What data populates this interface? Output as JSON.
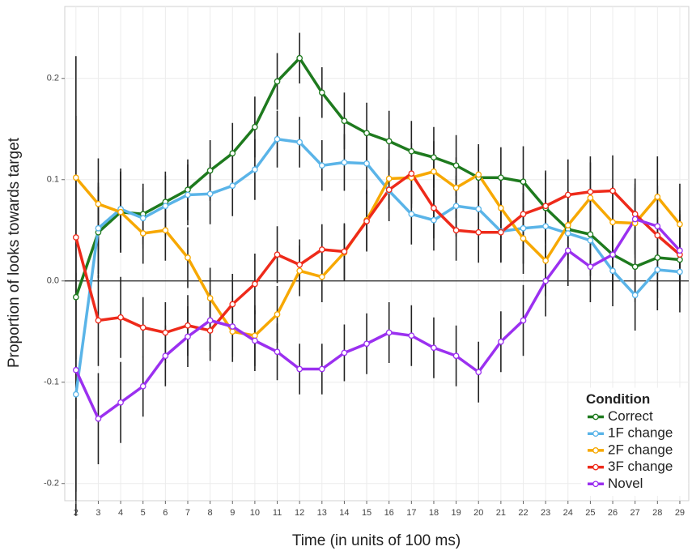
{
  "chart_data": {
    "type": "line",
    "x_label": "Time (in units of 100 ms)",
    "y_label": "Proportion of looks towards target",
    "x": [
      2,
      3,
      4,
      5,
      6,
      7,
      8,
      9,
      10,
      11,
      12,
      13,
      14,
      15,
      16,
      17,
      18,
      19,
      20,
      21,
      22,
      23,
      24,
      25,
      26,
      27,
      28,
      29
    ],
    "xlim": [
      1.5,
      29.4
    ],
    "xticks": [
      2,
      3,
      4,
      5,
      6,
      7,
      8,
      9,
      10,
      11,
      12,
      13,
      14,
      15,
      16,
      17,
      18,
      19,
      20,
      21,
      22,
      23,
      24,
      25,
      26,
      27,
      28,
      29
    ],
    "ylim": [
      -0.217,
      0.271
    ],
    "yticks": [
      -0.2,
      -0.1,
      {
        "value": 0,
        "label": "0.0"
      },
      0.1,
      0.2
    ],
    "hline": 0,
    "grid": true,
    "legend_title": "Condition",
    "legend_position": "bottom-right",
    "series": [
      {
        "name": "Correct",
        "color": "#1e7a1e",
        "values": [
          -0.016,
          0.048,
          0.068,
          0.066,
          0.078,
          0.09,
          0.109,
          0.126,
          0.152,
          0.197,
          0.22,
          0.186,
          0.158,
          0.146,
          0.138,
          0.128,
          0.122,
          0.114,
          0.102,
          0.102,
          0.098,
          0.072,
          0.051,
          0.046,
          0.026,
          0.014,
          0.023,
          0.021
        ],
        "errors": [
          0.12,
          0.045,
          0.04,
          0.03,
          0.03,
          0.03,
          0.03,
          0.03,
          0.03,
          0.028,
          0.025,
          0.025,
          0.028,
          0.03,
          0.03,
          0.03,
          0.03,
          0.03,
          0.03,
          0.03,
          0.035,
          0.035,
          0.035,
          0.035,
          0.035,
          0.035,
          0.04,
          0.04
        ]
      },
      {
        "name": "1F change",
        "color": "#5ab4e8",
        "values": [
          -0.112,
          0.052,
          0.071,
          0.062,
          0.074,
          0.085,
          0.086,
          0.094,
          0.11,
          0.14,
          0.137,
          0.114,
          0.117,
          0.116,
          0.089,
          0.066,
          0.06,
          0.074,
          0.071,
          0.049,
          0.052,
          0.054,
          0.047,
          0.04,
          0.01,
          -0.014,
          0.011,
          0.009
        ],
        "errors": [
          0.12,
          0.045,
          0.04,
          0.03,
          0.03,
          0.03,
          0.03,
          0.03,
          0.03,
          0.028,
          0.025,
          0.025,
          0.028,
          0.03,
          0.03,
          0.03,
          0.03,
          0.03,
          0.03,
          0.03,
          0.035,
          0.035,
          0.035,
          0.035,
          0.035,
          0.035,
          0.04,
          0.04
        ]
      },
      {
        "name": "2F change",
        "color": "#f7a800",
        "values": [
          0.102,
          0.076,
          0.068,
          0.047,
          0.05,
          0.023,
          -0.017,
          -0.05,
          -0.054,
          -0.033,
          0.01,
          0.004,
          0.028,
          0.06,
          0.101,
          0.102,
          0.108,
          0.092,
          0.105,
          0.072,
          0.042,
          0.02,
          0.055,
          0.082,
          0.058,
          0.057,
          0.083,
          0.056
        ],
        "errors": [
          0.12,
          0.045,
          0.04,
          0.03,
          0.03,
          0.03,
          0.03,
          0.03,
          0.03,
          0.028,
          0.025,
          0.025,
          0.028,
          0.03,
          0.03,
          0.03,
          0.03,
          0.03,
          0.03,
          0.03,
          0.035,
          0.035,
          0.035,
          0.035,
          0.035,
          0.035,
          0.04,
          0.04
        ]
      },
      {
        "name": "3F change",
        "color": "#ee2a1a",
        "values": [
          0.043,
          -0.039,
          -0.036,
          -0.046,
          -0.051,
          -0.044,
          -0.049,
          -0.023,
          -0.003,
          0.026,
          0.016,
          0.031,
          0.029,
          0.059,
          0.09,
          0.106,
          0.072,
          0.05,
          0.048,
          0.048,
          0.066,
          0.074,
          0.085,
          0.088,
          0.089,
          0.066,
          0.045,
          0.026
        ],
        "errors": [
          0.12,
          0.045,
          0.04,
          0.03,
          0.03,
          0.03,
          0.03,
          0.03,
          0.03,
          0.028,
          0.025,
          0.025,
          0.028,
          0.03,
          0.03,
          0.03,
          0.03,
          0.03,
          0.03,
          0.03,
          0.035,
          0.035,
          0.035,
          0.035,
          0.035,
          0.035,
          0.04,
          0.04
        ]
      },
      {
        "name": "Novel",
        "color": "#9b30f0",
        "values": [
          -0.088,
          -0.136,
          -0.12,
          -0.104,
          -0.074,
          -0.055,
          -0.039,
          -0.045,
          -0.059,
          -0.07,
          -0.087,
          -0.087,
          -0.071,
          -0.062,
          -0.051,
          -0.054,
          -0.066,
          -0.074,
          -0.09,
          -0.06,
          -0.039,
          0.0,
          0.03,
          0.014,
          0.026,
          0.061,
          0.054,
          0.03
        ],
        "errors": [
          0.12,
          0.045,
          0.04,
          0.03,
          0.03,
          0.03,
          0.03,
          0.03,
          0.03,
          0.028,
          0.025,
          0.025,
          0.028,
          0.03,
          0.03,
          0.03,
          0.03,
          0.03,
          0.03,
          0.03,
          0.035,
          0.035,
          0.035,
          0.035,
          0.035,
          0.035,
          0.04,
          0.04
        ]
      }
    ]
  }
}
